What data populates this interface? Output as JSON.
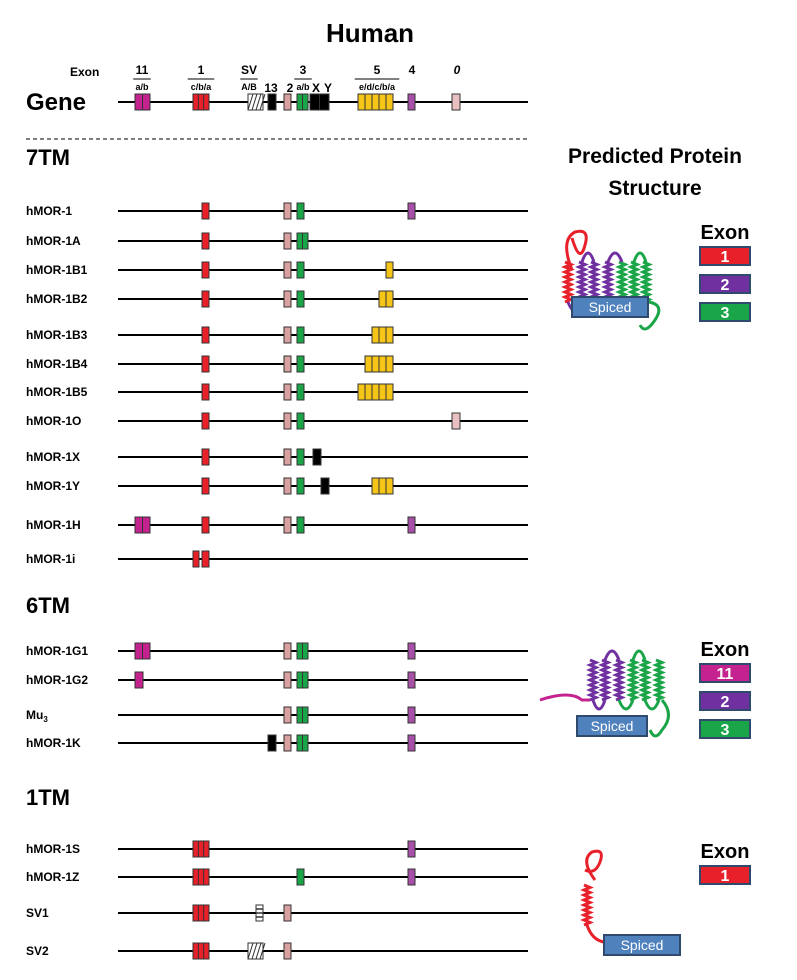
{
  "title": "Human",
  "gene": {
    "label": "Gene",
    "exon_label": "Exon",
    "exon_headers": [
      {
        "key": "11",
        "name": "11",
        "sub": "a/b"
      },
      {
        "key": "1",
        "name": "1",
        "sub": "c/b/a"
      },
      {
        "key": "SV",
        "name": "SV",
        "sub": "A/B"
      },
      {
        "key": "13",
        "name": "13",
        "sub": ""
      },
      {
        "key": "2",
        "name": "2",
        "sub": ""
      },
      {
        "key": "3",
        "name": "3",
        "sub": "a/b"
      },
      {
        "key": "X",
        "name": "X",
        "sub": ""
      },
      {
        "key": "Y",
        "name": "Y",
        "sub": ""
      },
      {
        "key": "5",
        "name": "5",
        "sub": "e/d/c/b/a"
      },
      {
        "key": "4",
        "name": "4",
        "sub": ""
      },
      {
        "key": "0",
        "name": "0",
        "sub": ""
      }
    ],
    "exons": [
      "11ab",
      "1cba",
      "SV",
      "13",
      "2",
      "3ab",
      "XY",
      "5x5",
      "4",
      "0"
    ]
  },
  "colors": {
    "exon1": "#e8202a",
    "exon2": "#d9a0a0",
    "exon3": "#1aa548",
    "exon4": "#a84fa8",
    "exon5": "#f5c518",
    "exon11": "#c4238f",
    "exon0": "#e8c0c0",
    "black": "#000000",
    "tm2": "#7030a0",
    "spiced": "#4f81bd"
  },
  "sections": [
    {
      "title": "7TM",
      "rows": [
        {
          "name": "hMOR-1",
          "exons": [
            "1",
            "2",
            "3",
            "4"
          ]
        },
        {
          "name": "hMOR-1A",
          "exons": [
            "1",
            "2",
            "3ab"
          ]
        },
        {
          "name": "hMOR-1B1",
          "exons": [
            "1",
            "2",
            "3",
            "5x1"
          ]
        },
        {
          "name": "hMOR-1B2",
          "exons": [
            "1",
            "2",
            "3",
            "5x2"
          ]
        },
        {
          "name": "hMOR-1B3",
          "exons": [
            "1",
            "2",
            "3",
            "5x3"
          ]
        },
        {
          "name": "hMOR-1B4",
          "exons": [
            "1",
            "2",
            "3",
            "5x4"
          ]
        },
        {
          "name": "hMOR-1B5",
          "exons": [
            "1",
            "2",
            "3",
            "5x5"
          ]
        },
        {
          "name": "hMOR-1O",
          "exons": [
            "1",
            "2",
            "3",
            "0"
          ]
        },
        {
          "name": "hMOR-1X",
          "exons": [
            "1",
            "2",
            "3",
            "X"
          ]
        },
        {
          "name": "hMOR-1Y",
          "exons": [
            "1",
            "2",
            "3",
            "Y",
            "5x3"
          ]
        },
        {
          "name": "hMOR-1H",
          "exons": [
            "11ab",
            "1",
            "2",
            "3",
            "4"
          ]
        },
        {
          "name": "hMOR-1i",
          "exons": [
            "1c",
            "1"
          ]
        }
      ]
    },
    {
      "title": "6TM",
      "rows": [
        {
          "name": "hMOR-1G1",
          "exons": [
            "11ab",
            "2",
            "3ab",
            "4"
          ]
        },
        {
          "name": "hMOR-1G2",
          "exons": [
            "11a",
            "2",
            "3ab",
            "4"
          ]
        },
        {
          "name": "Mu3",
          "exons": [
            "2",
            "3ab",
            "4"
          ]
        },
        {
          "name": "hMOR-1K",
          "exons": [
            "13",
            "2",
            "3ab",
            "4"
          ]
        }
      ]
    },
    {
      "title": "1TM",
      "rows": [
        {
          "name": "hMOR-1S",
          "exons": [
            "1cba",
            "4"
          ]
        },
        {
          "name": "hMOR-1Z",
          "exons": [
            "1cba",
            "3",
            "4"
          ]
        },
        {
          "name": "SV1",
          "exons": [
            "1cba",
            "SVb",
            "2"
          ]
        },
        {
          "name": "SV2",
          "exons": [
            "1cba",
            "SV",
            "2"
          ]
        }
      ]
    }
  ],
  "protein": {
    "title_line1": "Predicted Protein",
    "title_line2": "Structure",
    "exon_label": "Exon",
    "spiced_label": "Spiced",
    "structures": [
      {
        "section": "7TM",
        "legend": [
          "1",
          "2",
          "3"
        ],
        "legend_colors": [
          "#e8202a",
          "#7030a0",
          "#1aa548"
        ]
      },
      {
        "section": "6TM",
        "legend": [
          "11",
          "2",
          "3"
        ],
        "legend_colors": [
          "#c4238f",
          "#7030a0",
          "#1aa548"
        ]
      },
      {
        "section": "1TM",
        "legend": [
          "1"
        ],
        "legend_colors": [
          "#e8202a"
        ]
      }
    ]
  }
}
